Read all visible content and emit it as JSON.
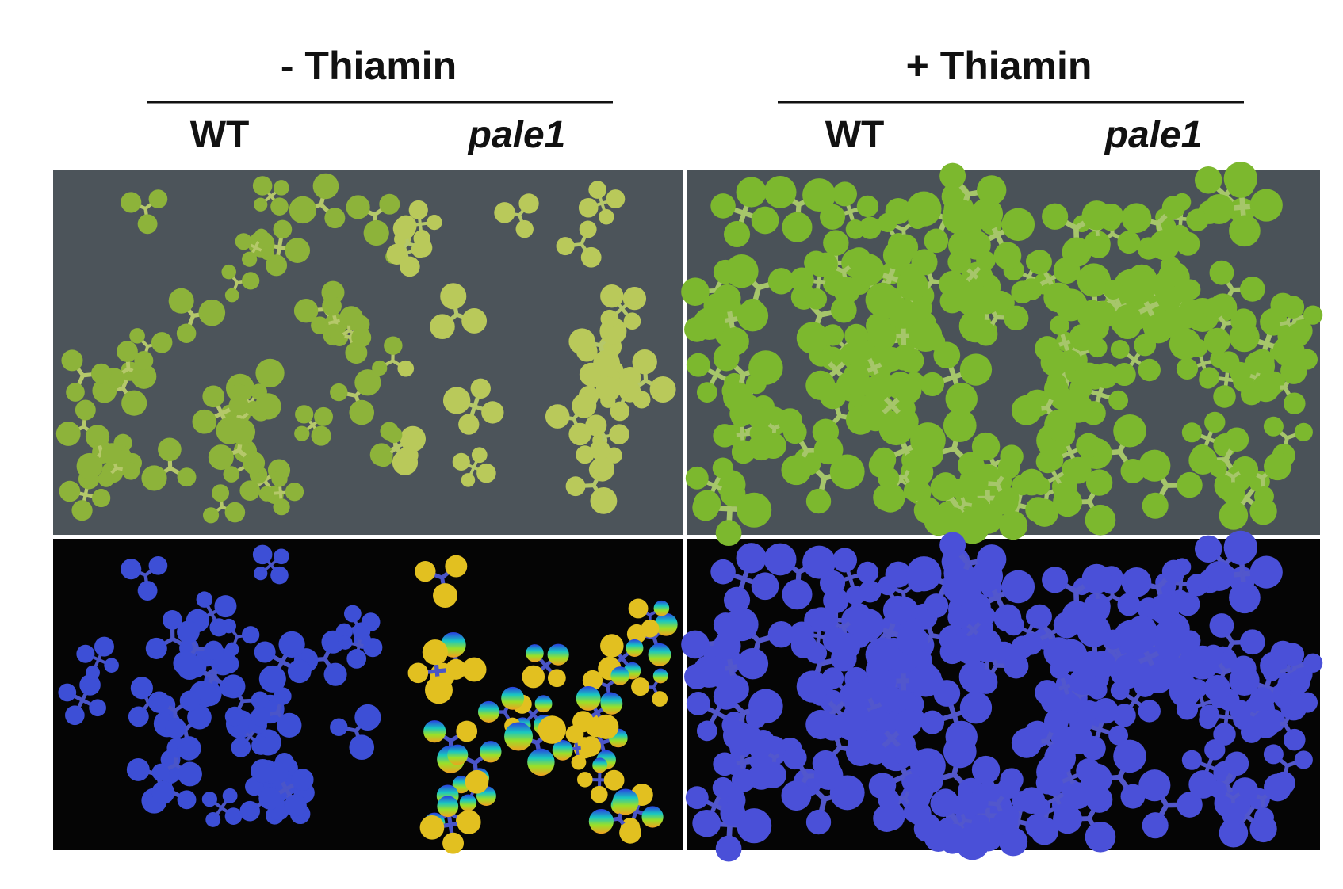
{
  "columns": [
    {
      "treatment": "- Thiamin",
      "genotypes": [
        "WT",
        "pale1"
      ]
    },
    {
      "treatment": "+ Thiamin",
      "genotypes": [
        "WT",
        "pale1"
      ]
    }
  ]
}
